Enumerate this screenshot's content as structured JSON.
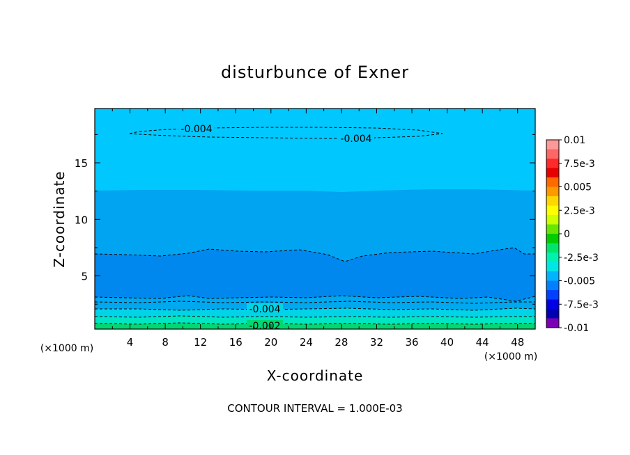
{
  "chart_data": {
    "type": "contour",
    "title": "disturbunce of Exner",
    "xlabel": "X-coordinate",
    "ylabel": "Z-coordinate",
    "x_unit": "(×1000 m)",
    "y_unit": "(×1000 m)",
    "footer": "CONTOUR INTERVAL = 1.000E-03",
    "xlim": [
      0,
      50
    ],
    "ylim": [
      0.3,
      19.8
    ],
    "x_ticks": [
      4,
      8,
      12,
      16,
      20,
      24,
      28,
      32,
      36,
      40,
      44,
      48
    ],
    "x_tick_labels": [
      "4",
      "8",
      "12",
      "16",
      "20",
      "24",
      "28",
      "32",
      "36",
      "40",
      "44",
      "48"
    ],
    "y_ticks": [
      5,
      10,
      15
    ],
    "y_tick_labels": [
      "5",
      "10",
      "15"
    ],
    "colorbar": {
      "min": -0.01,
      "max": 0.01,
      "labels": [
        "0.01",
        "7.5e-3",
        "0.005",
        "2.5e-3",
        "0",
        "-2.5e-3",
        "-0.005",
        "-7.5e-3",
        "-0.01"
      ],
      "colors": [
        "#ff9999",
        "#ff6666",
        "#ff2a2a",
        "#e60000",
        "#ff6a00",
        "#ff9900",
        "#ffd700",
        "#ffff00",
        "#ccff00",
        "#66e600",
        "#00cc00",
        "#00e66b",
        "#00f2b0",
        "#00e6e6",
        "#00b3ff",
        "#0080ff",
        "#0040ff",
        "#0000e6",
        "#0000b3",
        "#7a00b3"
      ]
    },
    "fill_bands": [
      {
        "name": "band-top",
        "color": "#00c8ff",
        "approx_level": -0.004
      },
      {
        "name": "band-upper",
        "color": "#00a4f0",
        "approx_level": -0.005
      },
      {
        "name": "band-middle",
        "color": "#0088ee",
        "approx_level": -0.006
      },
      {
        "name": "band-lower",
        "color": "#00a8f0",
        "approx_level": -0.005
      },
      {
        "name": "band-near-ground-1",
        "color": "#00d4e6",
        "approx_level": -0.004
      },
      {
        "name": "band-near-ground-2",
        "color": "#00e6c2",
        "approx_level": -0.003
      },
      {
        "name": "band-near-ground-3",
        "color": "#00d874",
        "approx_level": -0.002
      }
    ],
    "contour_labels": [
      {
        "text": "-0.004",
        "x": 11,
        "z": 17.8
      },
      {
        "text": "-0.004",
        "x": 30,
        "z": 17.5
      },
      {
        "text": "-0.004",
        "x": 19.5,
        "z": 1.9
      },
      {
        "text": "-0.002",
        "x": 19.5,
        "z": 0.4
      }
    ]
  }
}
